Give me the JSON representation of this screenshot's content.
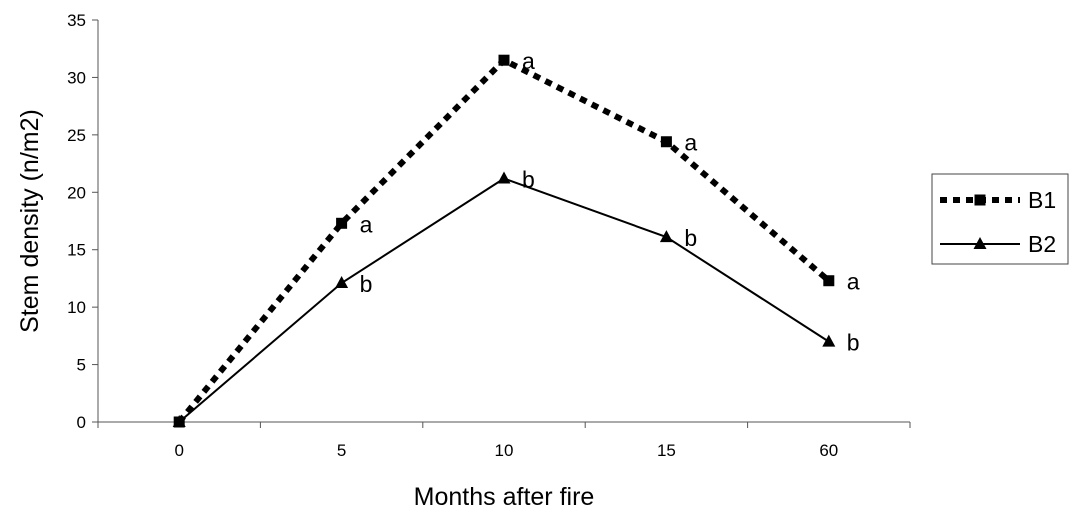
{
  "chart_data": {
    "type": "line",
    "categories": [
      "0",
      "5",
      "10",
      "15",
      "60"
    ],
    "series": [
      {
        "name": "B1",
        "values": [
          0,
          17.3,
          31.5,
          24.4,
          12.3
        ],
        "labels": [
          "",
          "a",
          "a",
          "a",
          "a"
        ],
        "style": "dashed",
        "marker": "square"
      },
      {
        "name": "B2",
        "values": [
          0,
          12.1,
          21.2,
          16.1,
          7.0
        ],
        "labels": [
          "",
          "b",
          "b",
          "b",
          "b"
        ],
        "style": "solid",
        "marker": "triangle"
      }
    ],
    "xlabel": "Months after fire",
    "ylabel": "Stem density (n/m2)",
    "ylim": [
      0,
      35
    ],
    "yticks": [
      0,
      5,
      10,
      15,
      20,
      25,
      30,
      35
    ],
    "grid": false,
    "legend_position": "right",
    "line_color": "#000000"
  }
}
